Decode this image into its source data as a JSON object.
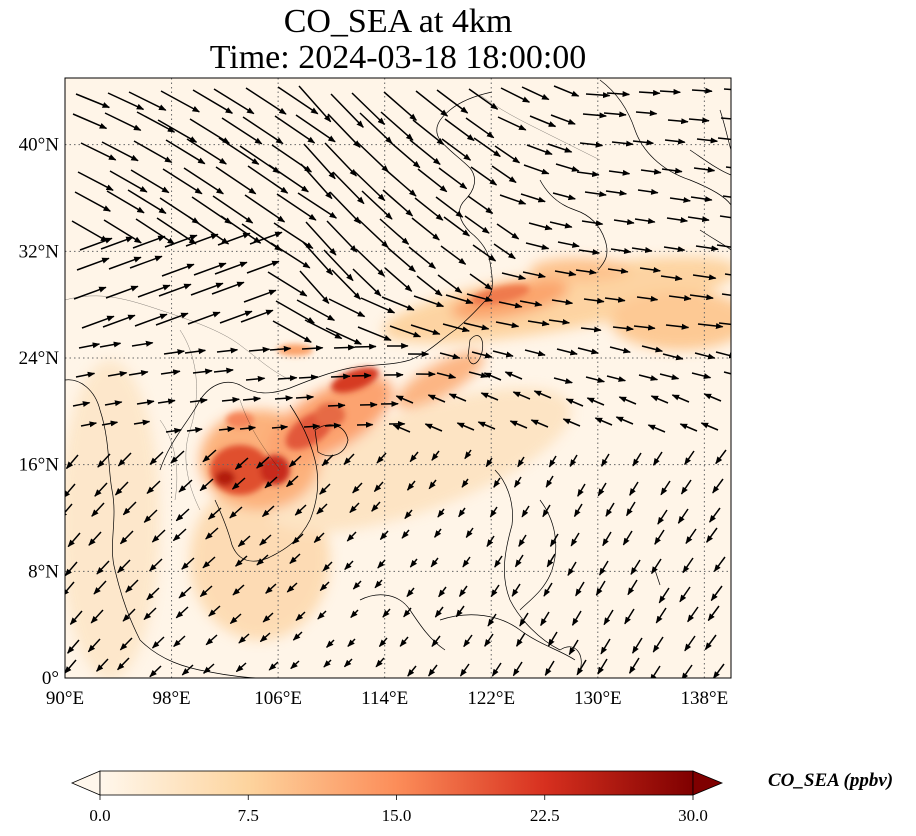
{
  "title_line1": "CO_SEA at 4km",
  "title_line2": "Time: 2024-03-18 18:00:00",
  "map": {
    "lon_range": [
      90,
      140
    ],
    "lat_range": [
      0,
      45
    ],
    "lon_ticks": [
      {
        "value": 90,
        "label": "90°E"
      },
      {
        "value": 98,
        "label": "98°E"
      },
      {
        "value": 106,
        "label": "106°E"
      },
      {
        "value": 114,
        "label": "114°E"
      },
      {
        "value": 122,
        "label": "122°E"
      },
      {
        "value": 130,
        "label": "130°E"
      },
      {
        "value": 138,
        "label": "138°E"
      }
    ],
    "lat_ticks": [
      {
        "value": 0,
        "label": "0°"
      },
      {
        "value": 8,
        "label": "8°N"
      },
      {
        "value": 16,
        "label": "16°N"
      },
      {
        "value": 24,
        "label": "24°N"
      },
      {
        "value": 32,
        "label": "32°N"
      },
      {
        "value": 40,
        "label": "40°N"
      }
    ],
    "gridlines": true,
    "colormap": "OrRd",
    "colors": {
      "low": "#fff7ec",
      "mid1": "#fdd49e",
      "mid2": "#fc8d59",
      "mid3": "#d7301f",
      "high": "#7f0000",
      "background": "#fff5e8"
    }
  },
  "colorbar": {
    "min": 0,
    "max": 30,
    "ticks": [
      "0.0",
      "7.5",
      "15.0",
      "22.5",
      "30.0"
    ],
    "label": "CO_SEA (ppbv)",
    "extend": "both"
  }
}
